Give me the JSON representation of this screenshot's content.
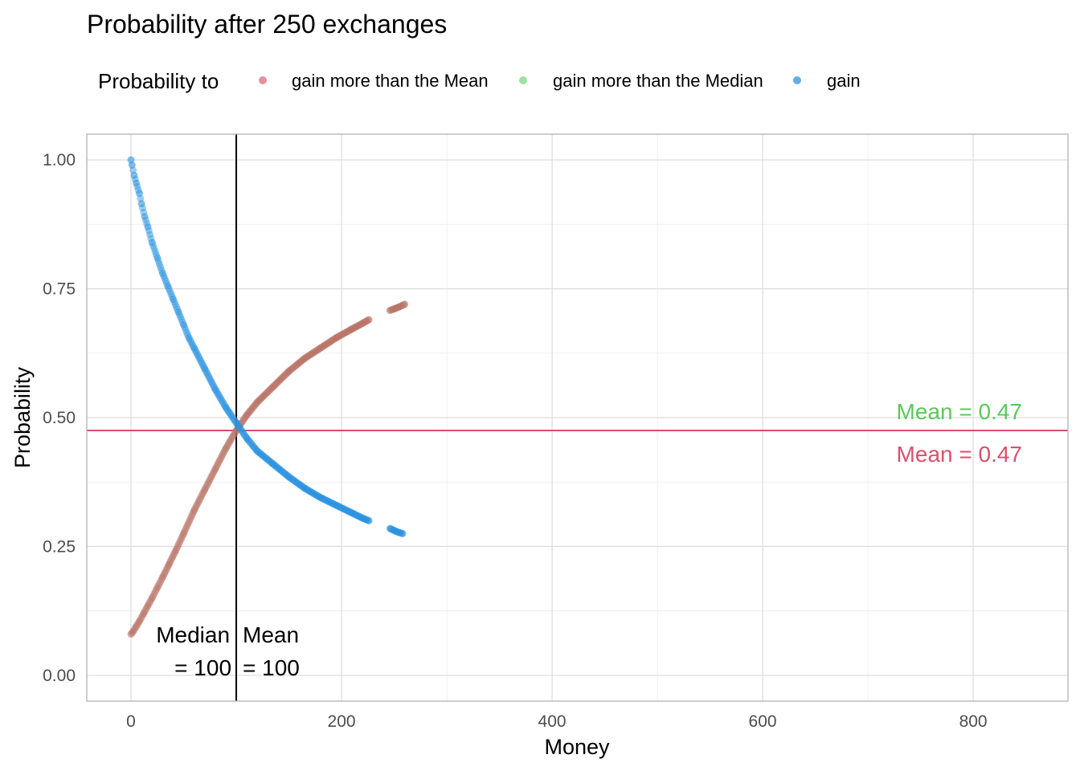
{
  "chart_data": {
    "type": "scatter",
    "title": "Probability after 250 exchanges",
    "xlabel": "Money",
    "ylabel": "Probability",
    "xlim": [
      -42,
      890
    ],
    "ylim": [
      -0.05,
      1.05
    ],
    "x_ticks": [
      0,
      200,
      400,
      600,
      800
    ],
    "y_ticks": [
      0.0,
      0.25,
      0.5,
      0.75,
      1.0
    ],
    "x_tick_labels": [
      "0",
      "200",
      "400",
      "600",
      "800"
    ],
    "y_tick_labels": [
      "0.00",
      "0.25",
      "0.50",
      "0.75",
      "1.00"
    ],
    "grid": true,
    "legend": {
      "position": "top",
      "title": "Probability to",
      "entries": [
        {
          "label": "gain more than the Mean",
          "color": "#e06b7d"
        },
        {
          "label": "gain more than the Median",
          "color": "#7ed87e"
        },
        {
          "label": "gain",
          "color": "#2b93e0"
        }
      ]
    },
    "series": [
      {
        "name": "gain more than the Mean",
        "color": "#b97466",
        "x": [
          0,
          2,
          5,
          8,
          12,
          16,
          20,
          25,
          30,
          36,
          42,
          50,
          60,
          70,
          80,
          90,
          100,
          110,
          120,
          135,
          150,
          165,
          180,
          195,
          210,
          220,
          226,
          246,
          250,
          256,
          260
        ],
        "y": [
          0.08,
          0.085,
          0.095,
          0.105,
          0.12,
          0.135,
          0.15,
          0.17,
          0.19,
          0.215,
          0.24,
          0.275,
          0.32,
          0.36,
          0.4,
          0.44,
          0.475,
          0.505,
          0.53,
          0.56,
          0.59,
          0.615,
          0.635,
          0.655,
          0.672,
          0.683,
          0.69,
          0.708,
          0.711,
          0.716,
          0.72
        ]
      },
      {
        "name": "gain more than the Median",
        "color": "#7ed87e",
        "x": [],
        "y": []
      },
      {
        "name": "gain",
        "color": "#2b93e0",
        "x": [
          0,
          1,
          3,
          5,
          8,
          10,
          13,
          16,
          20,
          25,
          30,
          35,
          40,
          45,
          50,
          55,
          60,
          70,
          80,
          90,
          100,
          110,
          120,
          135,
          150,
          165,
          180,
          195,
          210,
          220,
          226,
          246,
          252,
          258
        ],
        "y": [
          1.0,
          0.99,
          0.97,
          0.955,
          0.935,
          0.915,
          0.89,
          0.87,
          0.84,
          0.81,
          0.78,
          0.755,
          0.73,
          0.705,
          0.68,
          0.655,
          0.635,
          0.595,
          0.555,
          0.52,
          0.49,
          0.46,
          0.435,
          0.41,
          0.385,
          0.363,
          0.345,
          0.33,
          0.315,
          0.305,
          0.3,
          0.285,
          0.279,
          0.275
        ]
      }
    ],
    "reference_lines": [
      {
        "orientation": "vertical",
        "x": 100,
        "color": "#000000"
      },
      {
        "orientation": "horizontal",
        "y": 0.475,
        "color": "#d9506b"
      }
    ],
    "annotations": [
      {
        "id": "median",
        "lines": [
          "Median",
          "= 100"
        ],
        "x": 100,
        "y": 0.06,
        "align": "right"
      },
      {
        "id": "mean-money",
        "lines": [
          "Mean",
          "= 100"
        ],
        "x": 100,
        "y": 0.06,
        "align": "left"
      },
      {
        "id": "mean-green",
        "text": "Mean = 0.47",
        "color": "#5cc85c",
        "x": 850,
        "y": 0.5
      },
      {
        "id": "mean-red",
        "text": "Mean = 0.47",
        "color": "#d9506b",
        "x": 850,
        "y": 0.42
      }
    ]
  }
}
